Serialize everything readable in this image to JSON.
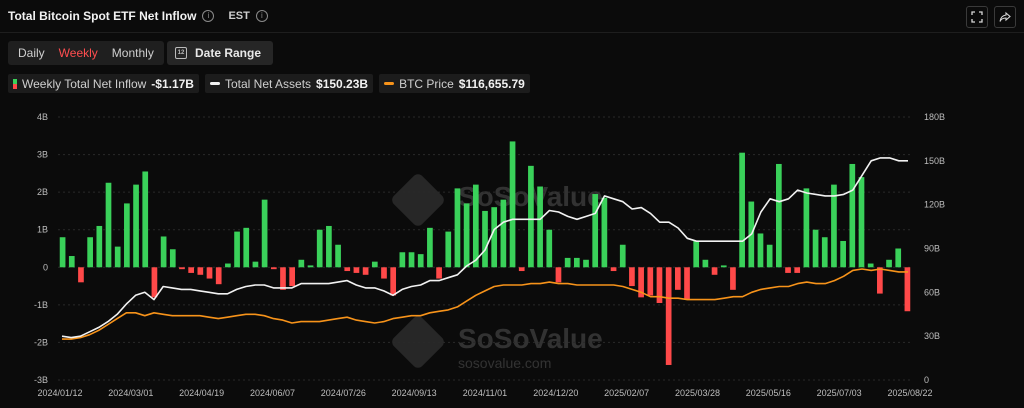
{
  "header": {
    "title": "Total Bitcoin Spot ETF Net Inflow",
    "timezone": "EST",
    "fullscreen_icon": "fullscreen-icon",
    "share_icon": "share-icon"
  },
  "tabs": [
    {
      "label": "Daily",
      "active": false
    },
    {
      "label": "Weekly",
      "active": true
    },
    {
      "label": "Monthly",
      "active": false
    }
  ],
  "date_range_label": "Date Range",
  "legend": {
    "inflow": {
      "label": "Weekly Total Net Inflow",
      "value": "-$1.17B"
    },
    "assets": {
      "label": "Total Net Assets",
      "value": "$150.23B"
    },
    "btc": {
      "label": "BTC Price",
      "value": "$116,655.79"
    }
  },
  "watermark": {
    "brand": "SoSoValue",
    "site": "sosovalue.com"
  },
  "colors": {
    "positive": "#3ad15a",
    "negative": "#ff4949",
    "assets": "#f2f2f2",
    "btc": "#f7931a",
    "grid": "#2a2a2a"
  },
  "chart_data": {
    "type": "bar",
    "x_tick_labels": [
      "2024/01/12",
      "2024/03/01",
      "2024/04/19",
      "2024/06/07",
      "2024/07/26",
      "2024/09/13",
      "2024/11/01",
      "2024/12/20",
      "2025/02/07",
      "2025/03/28",
      "2025/05/16",
      "2025/07/03",
      "2025/08/22"
    ],
    "left_axis": {
      "ticks": [
        "4B",
        "3B",
        "2B",
        "1B",
        "0",
        "-1B",
        "-2B",
        "-3B"
      ],
      "ylim": [
        -3,
        4
      ]
    },
    "right_axis": {
      "ticks": [
        "180B",
        "150B",
        "120B",
        "90B",
        "60B",
        "30B",
        "0"
      ],
      "ylim": [
        0,
        180
      ]
    },
    "series": [
      {
        "name": "Weekly Total Net Inflow",
        "unit": "B USD",
        "values": [
          0.8,
          0.3,
          -0.4,
          0.8,
          1.1,
          2.25,
          0.55,
          1.7,
          2.2,
          2.55,
          -0.8,
          0.82,
          0.48,
          -0.05,
          -0.15,
          -0.2,
          -0.3,
          -0.45,
          0.1,
          0.95,
          1.05,
          0.15,
          1.8,
          -0.05,
          -0.6,
          -0.5,
          0.2,
          0.05,
          1.0,
          1.1,
          0.6,
          -0.1,
          -0.15,
          -0.2,
          0.15,
          -0.3,
          -0.75,
          0.4,
          0.4,
          0.35,
          1.05,
          -0.3,
          0.95,
          2.1,
          1.7,
          2.2,
          1.5,
          1.6,
          1.8,
          3.35,
          -0.1,
          2.7,
          2.15,
          1.0,
          -0.4,
          0.25,
          0.25,
          0.2,
          1.95,
          1.85,
          -0.1,
          0.6,
          -0.5,
          -0.8,
          -0.75,
          -0.95,
          -2.6,
          -0.6,
          -0.85,
          0.7,
          0.2,
          -0.2,
          0.05,
          -0.6,
          3.05,
          1.75,
          0.9,
          0.6,
          2.75,
          -0.15,
          -0.15,
          2.1,
          1.0,
          0.8,
          2.2,
          0.7,
          2.75,
          2.4,
          0.1,
          -0.7,
          0.2,
          0.5,
          -1.17
        ]
      },
      {
        "name": "Total Net Assets",
        "unit": "B USD",
        "values": [
          30,
          29,
          30,
          33,
          36,
          40,
          45,
          52,
          58,
          60,
          55,
          64,
          63,
          62,
          62,
          61,
          60,
          59,
          59,
          62,
          64,
          65,
          65,
          63,
          63,
          63,
          66,
          66,
          66,
          66,
          67,
          68,
          65,
          63,
          63,
          61,
          58,
          62,
          64,
          65,
          68,
          68,
          70,
          72,
          78,
          82,
          89,
          103,
          108,
          110,
          110,
          110,
          110,
          116,
          115,
          112,
          110,
          112,
          114,
          126,
          124,
          122,
          117,
          118,
          114,
          108,
          108,
          104,
          97,
          95,
          95,
          95,
          95,
          95,
          95,
          100,
          115,
          124,
          122,
          124,
          130,
          128,
          127,
          126,
          126,
          127,
          130,
          140,
          150,
          152,
          152,
          150,
          150
        ]
      },
      {
        "name": "BTC Price",
        "unit": "USD (plotted on right axis scale)",
        "values": [
          28,
          28,
          29,
          31,
          34,
          38,
          42,
          46,
          46,
          44,
          46,
          45,
          44,
          44,
          44,
          44,
          43,
          42,
          43,
          44,
          45,
          45,
          44,
          42,
          41,
          39,
          40,
          40,
          40,
          41,
          42,
          43,
          41,
          40,
          39,
          40,
          42,
          43,
          44,
          44,
          46,
          47,
          48,
          50,
          54,
          58,
          61,
          64,
          65,
          65,
          65,
          66,
          66,
          67,
          66,
          66,
          65,
          65,
          65,
          65,
          65,
          64,
          62,
          60,
          57,
          57,
          56,
          56,
          55,
          55,
          55,
          55,
          56,
          57,
          57,
          60,
          62,
          63,
          64,
          64,
          66,
          67,
          66,
          66,
          68,
          71,
          75,
          76,
          75,
          76,
          75,
          74,
          74
        ]
      }
    ]
  }
}
